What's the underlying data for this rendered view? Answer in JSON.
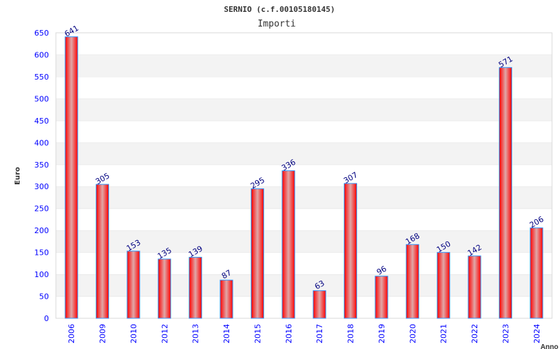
{
  "chart_data": {
    "type": "bar",
    "title": "SERNIO (c.f.00105180145)",
    "subtitle": "Importi",
    "xlabel": "Anno",
    "ylabel": "Euro",
    "categories": [
      "2006",
      "2009",
      "2010",
      "2012",
      "2013",
      "2014",
      "2015",
      "2016",
      "2017",
      "2018",
      "2019",
      "2020",
      "2021",
      "2022",
      "2023",
      "2024"
    ],
    "values": [
      641,
      305,
      153,
      135,
      139,
      87,
      295,
      336,
      63,
      307,
      96,
      168,
      150,
      142,
      571,
      206
    ],
    "ylim": [
      0,
      650
    ],
    "yticks": [
      0,
      50,
      100,
      150,
      200,
      250,
      300,
      350,
      400,
      450,
      500,
      550,
      600,
      650
    ],
    "grid": true,
    "colors": {
      "bar": "#ff0000",
      "bar_highlight": "#e8b0b0",
      "bar_border": "#3399ff",
      "tick": "#0000ff",
      "value_label": "#000080",
      "band": "#f3f3f3"
    }
  }
}
